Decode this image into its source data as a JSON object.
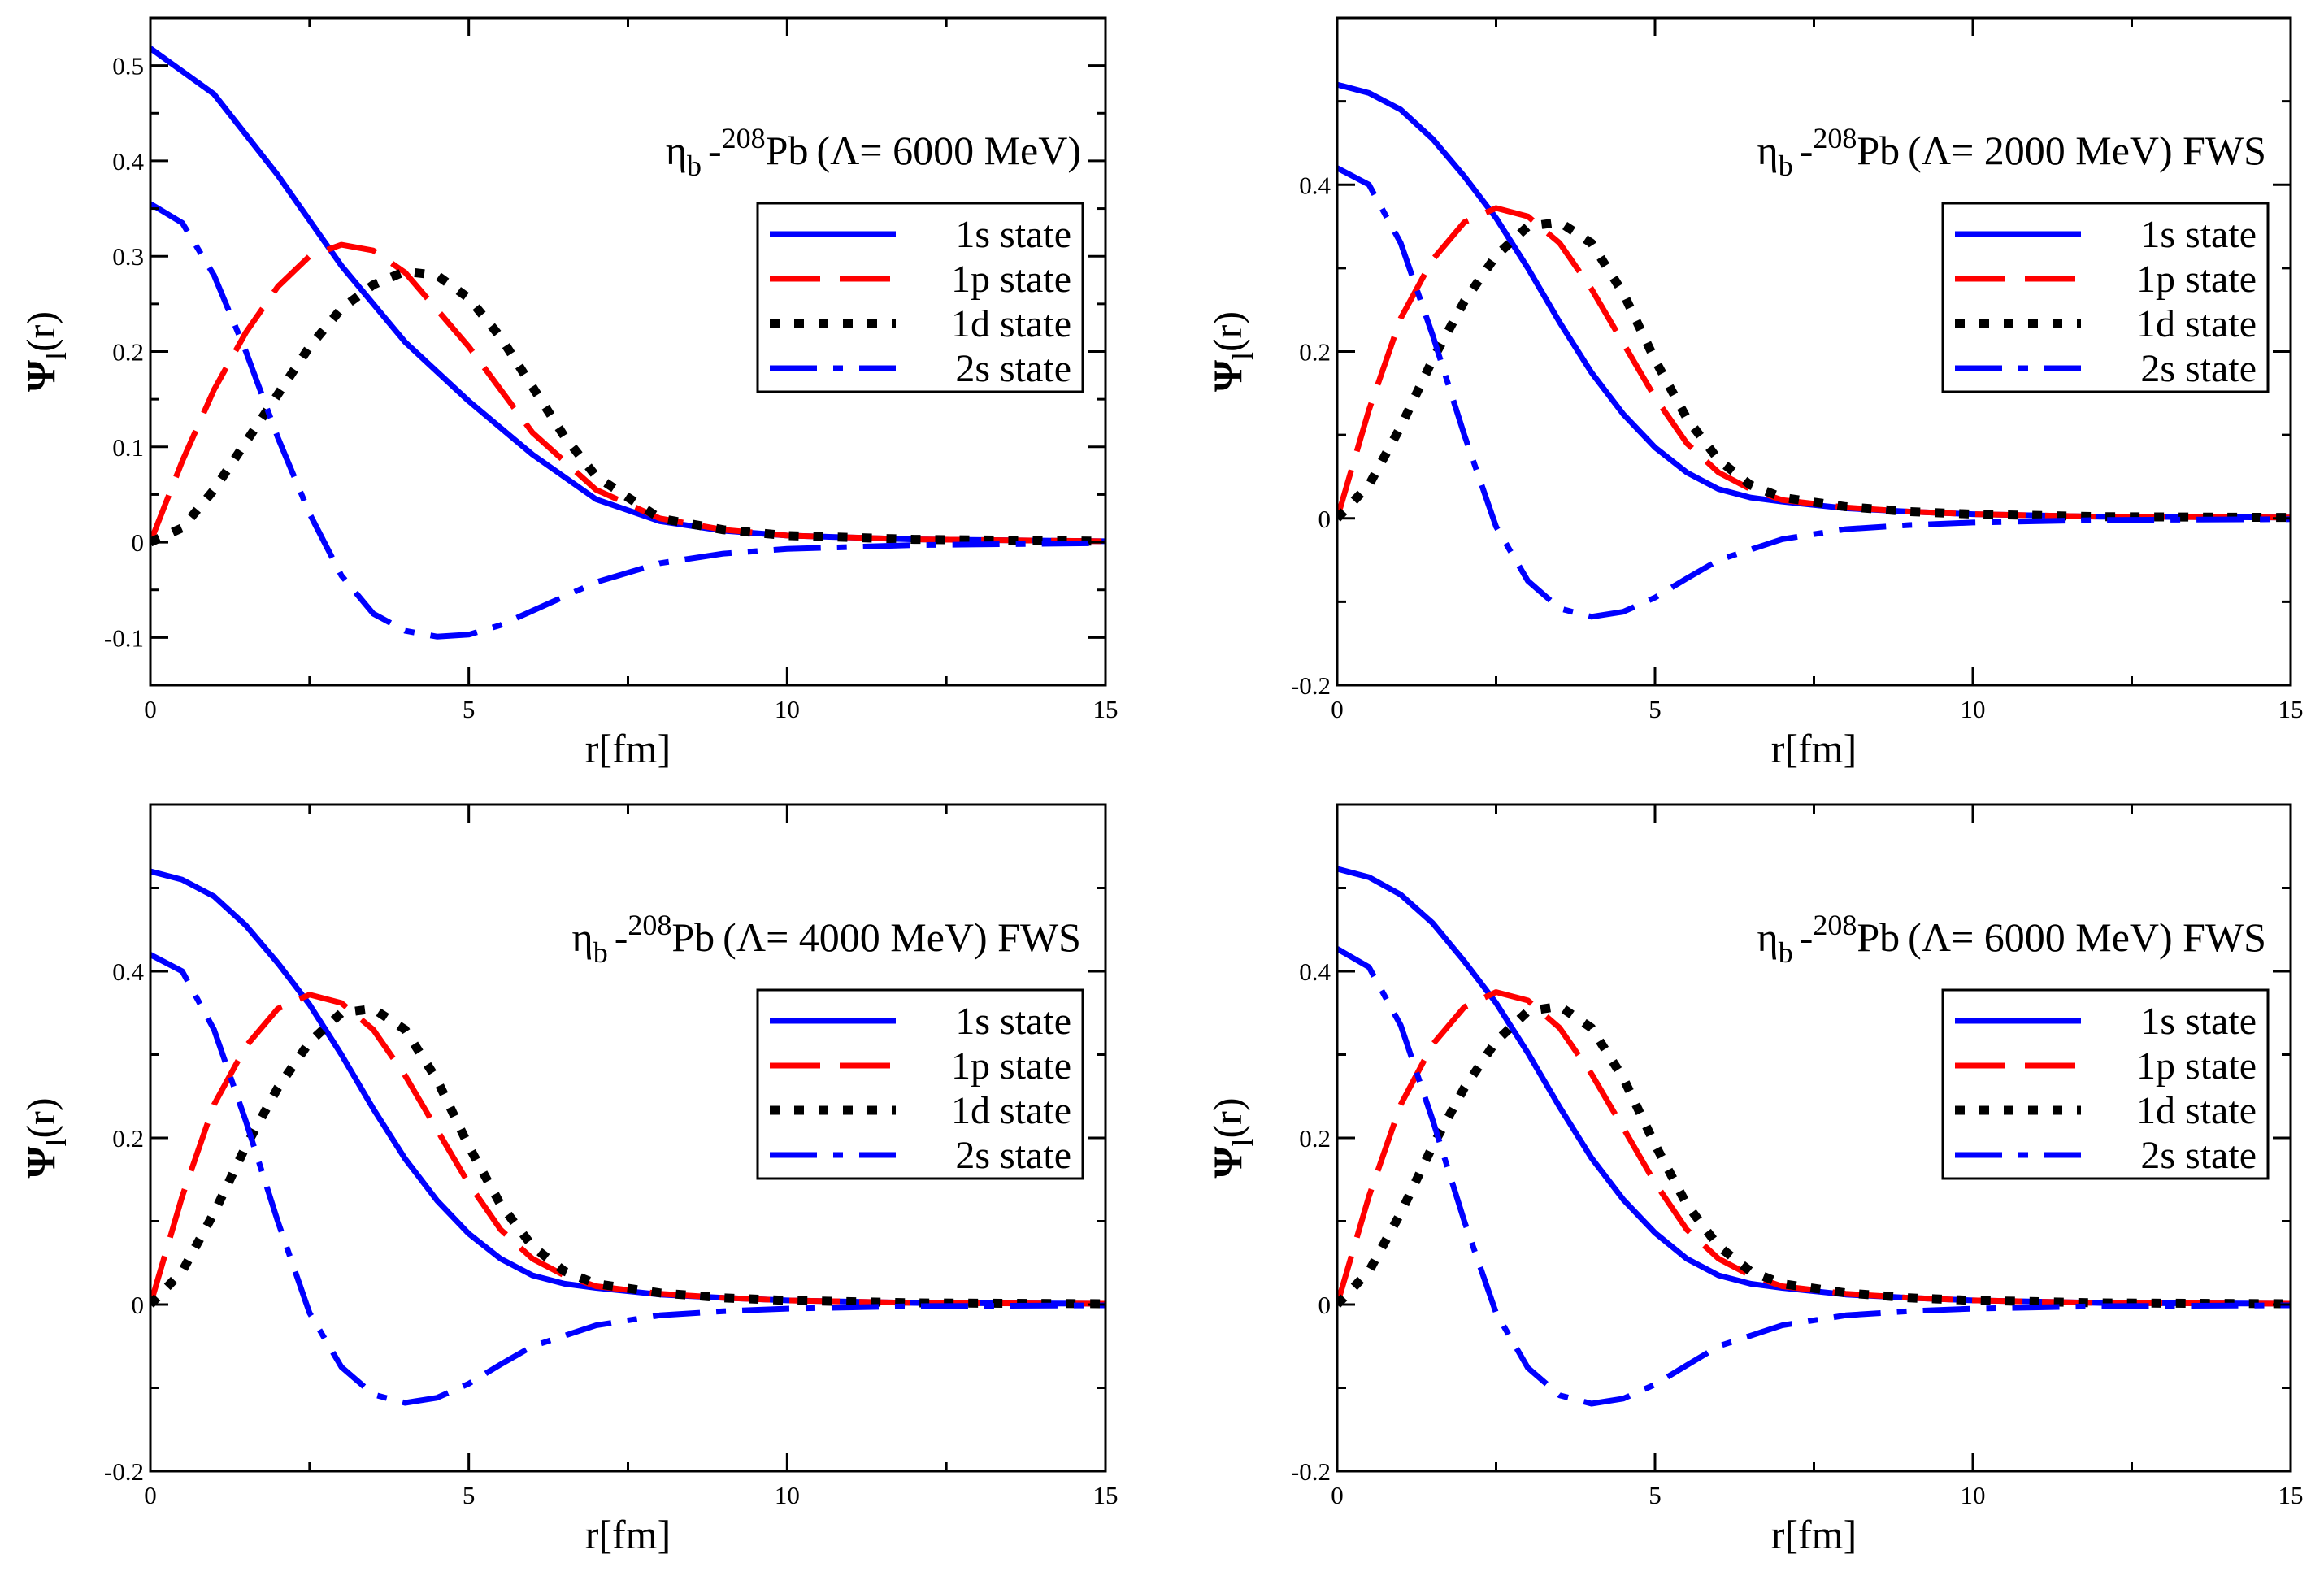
{
  "chart_data": [
    {
      "type": "line",
      "title": {
        "particle": "η",
        "particle_sub": "b",
        "dash": "-",
        "mass_number": "208",
        "nucleus": "Pb",
        "params": "(Λ= 6000 MeV)"
      },
      "xlabel": "r[fm]",
      "ylabel": {
        "main": "Ψ",
        "sub": "l",
        "arg": "(r)"
      },
      "xlim": [
        0,
        15
      ],
      "ylim": [
        -0.15,
        0.55
      ],
      "x_ticks": [
        0,
        5,
        10,
        15
      ],
      "y_ticks": [
        -0.1,
        0,
        0.1,
        0.2,
        0.3,
        0.4,
        0.5
      ],
      "y_tick_labels": [
        "-0.1",
        "0",
        "0.1",
        "0.2",
        "0.3",
        "0.4",
        "0.5"
      ],
      "legend_position": "upper-right",
      "series": [
        {
          "name": "1s state",
          "style": "solid",
          "color": "#0000ff",
          "x": [
            0,
            1,
            2,
            3,
            4,
            5,
            6,
            7,
            8,
            9,
            10,
            12,
            15
          ],
          "y": [
            0.518,
            0.47,
            0.385,
            0.29,
            0.21,
            0.148,
            0.092,
            0.045,
            0.022,
            0.012,
            0.007,
            0.003,
            0.001
          ]
        },
        {
          "name": "1p state",
          "style": "dashed",
          "color": "#ff0000",
          "x": [
            0,
            0.5,
            1,
            1.5,
            2,
            2.5,
            3,
            3.5,
            4,
            5,
            6,
            7,
            8,
            9,
            10,
            12,
            15
          ],
          "y": [
            0,
            0.085,
            0.16,
            0.22,
            0.268,
            0.3,
            0.312,
            0.306,
            0.283,
            0.205,
            0.115,
            0.055,
            0.025,
            0.013,
            0.007,
            0.003,
            0.001
          ]
        },
        {
          "name": "1d state",
          "style": "dotted",
          "color": "#000000",
          "x": [
            0,
            0.5,
            1,
            1.5,
            2,
            2.5,
            3,
            3.5,
            4,
            4.5,
            5,
            5.5,
            6,
            6.5,
            7,
            8,
            9,
            10,
            12,
            15
          ],
          "y": [
            0,
            0.015,
            0.055,
            0.105,
            0.155,
            0.205,
            0.245,
            0.27,
            0.284,
            0.28,
            0.256,
            0.215,
            0.163,
            0.111,
            0.069,
            0.025,
            0.013,
            0.007,
            0.003,
            0.001
          ]
        },
        {
          "name": "2s state",
          "style": "dashdot",
          "color": "#0000ff",
          "x": [
            0,
            0.5,
            1,
            1.5,
            2,
            2.5,
            3,
            3.5,
            4,
            4.5,
            5,
            5.5,
            6,
            7,
            8,
            9,
            10,
            12,
            15
          ],
          "y": [
            0.355,
            0.335,
            0.28,
            0.2,
            0.11,
            0.03,
            -0.035,
            -0.075,
            -0.093,
            -0.099,
            -0.097,
            -0.087,
            -0.072,
            -0.042,
            -0.022,
            -0.012,
            -0.007,
            -0.003,
            -0.001
          ]
        }
      ]
    },
    {
      "type": "line",
      "title": {
        "particle": "η",
        "particle_sub": "b",
        "dash": "-",
        "mass_number": "208",
        "nucleus": "Pb",
        "params": "(Λ= 2000 MeV) FWS"
      },
      "xlabel": "r[fm]",
      "ylabel": {
        "main": "Ψ",
        "sub": "l",
        "arg": "(r)"
      },
      "xlim": [
        0,
        15
      ],
      "ylim": [
        -0.2,
        0.6
      ],
      "x_ticks": [
        0,
        5,
        10,
        15
      ],
      "y_ticks": [
        -0.2,
        0,
        0.2,
        0.4
      ],
      "y_tick_labels": [
        "-0.2",
        "0",
        "0.2",
        "0.4"
      ],
      "legend_position": "upper-right",
      "series": [
        {
          "name": "1s state",
          "style": "solid",
          "color": "#0000ff",
          "x": [
            0,
            0.5,
            1,
            1.5,
            2,
            2.5,
            3,
            3.5,
            4,
            4.5,
            5,
            5.5,
            6,
            6.5,
            7,
            8,
            9,
            10,
            12,
            15
          ],
          "y": [
            0.52,
            0.51,
            0.49,
            0.455,
            0.41,
            0.36,
            0.3,
            0.235,
            0.175,
            0.125,
            0.085,
            0.055,
            0.035,
            0.025,
            0.02,
            0.012,
            0.008,
            0.005,
            0.002,
            0.001
          ]
        },
        {
          "name": "1p state",
          "style": "dashed",
          "color": "#ff0000",
          "x": [
            0,
            0.5,
            1,
            1.5,
            2,
            2.5,
            3,
            3.5,
            4,
            4.5,
            5,
            5.5,
            6,
            6.5,
            7,
            8,
            9,
            10,
            12,
            15
          ],
          "y": [
            0,
            0.13,
            0.24,
            0.31,
            0.355,
            0.372,
            0.362,
            0.33,
            0.275,
            0.21,
            0.145,
            0.09,
            0.055,
            0.035,
            0.022,
            0.013,
            0.008,
            0.005,
            0.002,
            0.001
          ]
        },
        {
          "name": "1d state",
          "style": "dotted",
          "color": "#000000",
          "x": [
            0,
            0.5,
            1,
            1.5,
            2,
            2.5,
            3,
            3.5,
            4,
            4.5,
            5,
            5.5,
            6,
            6.5,
            7,
            8,
            9,
            10,
            12,
            15
          ],
          "y": [
            0,
            0.04,
            0.11,
            0.19,
            0.26,
            0.315,
            0.35,
            0.355,
            0.33,
            0.27,
            0.19,
            0.12,
            0.07,
            0.04,
            0.025,
            0.014,
            0.008,
            0.005,
            0.002,
            0.001
          ]
        },
        {
          "name": "2s state",
          "style": "dashdot",
          "color": "#0000ff",
          "x": [
            0,
            0.5,
            1,
            1.5,
            2,
            2.5,
            3,
            3.5,
            4,
            4.5,
            5,
            5.5,
            6,
            7,
            8,
            9,
            10,
            12,
            15
          ],
          "y": [
            0.42,
            0.4,
            0.33,
            0.22,
            0.1,
            -0.01,
            -0.075,
            -0.108,
            -0.118,
            -0.112,
            -0.095,
            -0.072,
            -0.05,
            -0.025,
            -0.013,
            -0.008,
            -0.005,
            -0.002,
            -0.001
          ]
        }
      ]
    },
    {
      "type": "line",
      "title": {
        "particle": "η",
        "particle_sub": "b",
        "dash": "-",
        "mass_number": "208",
        "nucleus": "Pb",
        "params": "(Λ= 4000 MeV) FWS"
      },
      "xlabel": "r[fm]",
      "ylabel": {
        "main": "Ψ",
        "sub": "l",
        "arg": "(r)"
      },
      "xlim": [
        0,
        15
      ],
      "ylim": [
        -0.2,
        0.6
      ],
      "x_ticks": [
        0,
        5,
        10,
        15
      ],
      "y_ticks": [
        -0.2,
        0,
        0.2,
        0.4
      ],
      "y_tick_labels": [
        "-0.2",
        "0",
        "0.2",
        "0.4"
      ],
      "legend_position": "upper-right",
      "series": [
        {
          "name": "1s state",
          "style": "solid",
          "color": "#0000ff",
          "x": [
            0,
            0.5,
            1,
            1.5,
            2,
            2.5,
            3,
            3.5,
            4,
            4.5,
            5,
            5.5,
            6,
            6.5,
            7,
            8,
            9,
            10,
            12,
            15
          ],
          "y": [
            0.52,
            0.51,
            0.49,
            0.455,
            0.41,
            0.36,
            0.3,
            0.235,
            0.175,
            0.125,
            0.085,
            0.055,
            0.035,
            0.025,
            0.02,
            0.012,
            0.008,
            0.005,
            0.002,
            0.001
          ]
        },
        {
          "name": "1p state",
          "style": "dashed",
          "color": "#ff0000",
          "x": [
            0,
            0.5,
            1,
            1.5,
            2,
            2.5,
            3,
            3.5,
            4,
            4.5,
            5,
            5.5,
            6,
            6.5,
            7,
            8,
            9,
            10,
            12,
            15
          ],
          "y": [
            0,
            0.13,
            0.24,
            0.31,
            0.355,
            0.372,
            0.362,
            0.33,
            0.275,
            0.21,
            0.145,
            0.09,
            0.055,
            0.035,
            0.022,
            0.013,
            0.008,
            0.005,
            0.002,
            0.001
          ]
        },
        {
          "name": "1d state",
          "style": "dotted",
          "color": "#000000",
          "x": [
            0,
            0.5,
            1,
            1.5,
            2,
            2.5,
            3,
            3.5,
            4,
            4.5,
            5,
            5.5,
            6,
            6.5,
            7,
            8,
            9,
            10,
            12,
            15
          ],
          "y": [
            0,
            0.04,
            0.11,
            0.19,
            0.26,
            0.315,
            0.35,
            0.355,
            0.33,
            0.27,
            0.19,
            0.12,
            0.07,
            0.04,
            0.025,
            0.014,
            0.008,
            0.005,
            0.002,
            0.001
          ]
        },
        {
          "name": "2s state",
          "style": "dashdot",
          "color": "#0000ff",
          "x": [
            0,
            0.5,
            1,
            1.5,
            2,
            2.5,
            3,
            3.5,
            4,
            4.5,
            5,
            5.5,
            6,
            7,
            8,
            9,
            10,
            12,
            15
          ],
          "y": [
            0.42,
            0.4,
            0.33,
            0.22,
            0.1,
            -0.01,
            -0.075,
            -0.108,
            -0.118,
            -0.112,
            -0.095,
            -0.072,
            -0.05,
            -0.025,
            -0.013,
            -0.008,
            -0.005,
            -0.002,
            -0.001
          ]
        }
      ]
    },
    {
      "type": "line",
      "title": {
        "particle": "η",
        "particle_sub": "b",
        "dash": "-",
        "mass_number": "208",
        "nucleus": "Pb",
        "params": "(Λ= 6000 MeV) FWS"
      },
      "xlabel": "r[fm]",
      "ylabel": {
        "main": "Ψ",
        "sub": "l",
        "arg": "(r)"
      },
      "xlim": [
        0,
        15
      ],
      "ylim": [
        -0.2,
        0.6
      ],
      "x_ticks": [
        0,
        5,
        10,
        15
      ],
      "y_ticks": [
        -0.2,
        0,
        0.2,
        0.4
      ],
      "y_tick_labels": [
        "-0.2",
        "0",
        "0.2",
        "0.4"
      ],
      "legend_position": "upper-right",
      "series": [
        {
          "name": "1s state",
          "style": "solid",
          "color": "#0000ff",
          "x": [
            0,
            0.5,
            1,
            1.5,
            2,
            2.5,
            3,
            3.5,
            4,
            4.5,
            5,
            5.5,
            6,
            6.5,
            7,
            8,
            9,
            10,
            12,
            15
          ],
          "y": [
            0.523,
            0.513,
            0.492,
            0.458,
            0.412,
            0.362,
            0.302,
            0.237,
            0.176,
            0.126,
            0.086,
            0.055,
            0.035,
            0.025,
            0.02,
            0.012,
            0.008,
            0.005,
            0.002,
            0.001
          ]
        },
        {
          "name": "1p state",
          "style": "dashed",
          "color": "#ff0000",
          "x": [
            0,
            0.5,
            1,
            1.5,
            2,
            2.5,
            3,
            3.5,
            4,
            4.5,
            5,
            5.5,
            6,
            6.5,
            7,
            8,
            9,
            10,
            12,
            15
          ],
          "y": [
            0,
            0.13,
            0.24,
            0.312,
            0.357,
            0.375,
            0.365,
            0.332,
            0.277,
            0.212,
            0.146,
            0.09,
            0.055,
            0.035,
            0.022,
            0.013,
            0.008,
            0.005,
            0.002,
            0.001
          ]
        },
        {
          "name": "1d state",
          "style": "dotted",
          "color": "#000000",
          "x": [
            0,
            0.5,
            1,
            1.5,
            2,
            2.5,
            3,
            3.5,
            4,
            4.5,
            5,
            5.5,
            6,
            6.5,
            7,
            8,
            9,
            10,
            12,
            15
          ],
          "y": [
            0,
            0.04,
            0.11,
            0.19,
            0.26,
            0.316,
            0.352,
            0.358,
            0.332,
            0.272,
            0.192,
            0.12,
            0.07,
            0.04,
            0.025,
            0.014,
            0.008,
            0.005,
            0.002,
            0.001
          ]
        },
        {
          "name": "2s state",
          "style": "dashdot",
          "color": "#0000ff",
          "x": [
            0,
            0.5,
            1,
            1.5,
            2,
            2.5,
            3,
            3.5,
            4,
            4.5,
            5,
            5.5,
            6,
            7,
            8,
            9,
            10,
            12,
            15
          ],
          "y": [
            0.427,
            0.405,
            0.335,
            0.222,
            0.1,
            -0.01,
            -0.076,
            -0.109,
            -0.119,
            -0.113,
            -0.096,
            -0.073,
            -0.05,
            -0.025,
            -0.013,
            -0.008,
            -0.005,
            -0.002,
            -0.001
          ]
        }
      ]
    }
  ]
}
